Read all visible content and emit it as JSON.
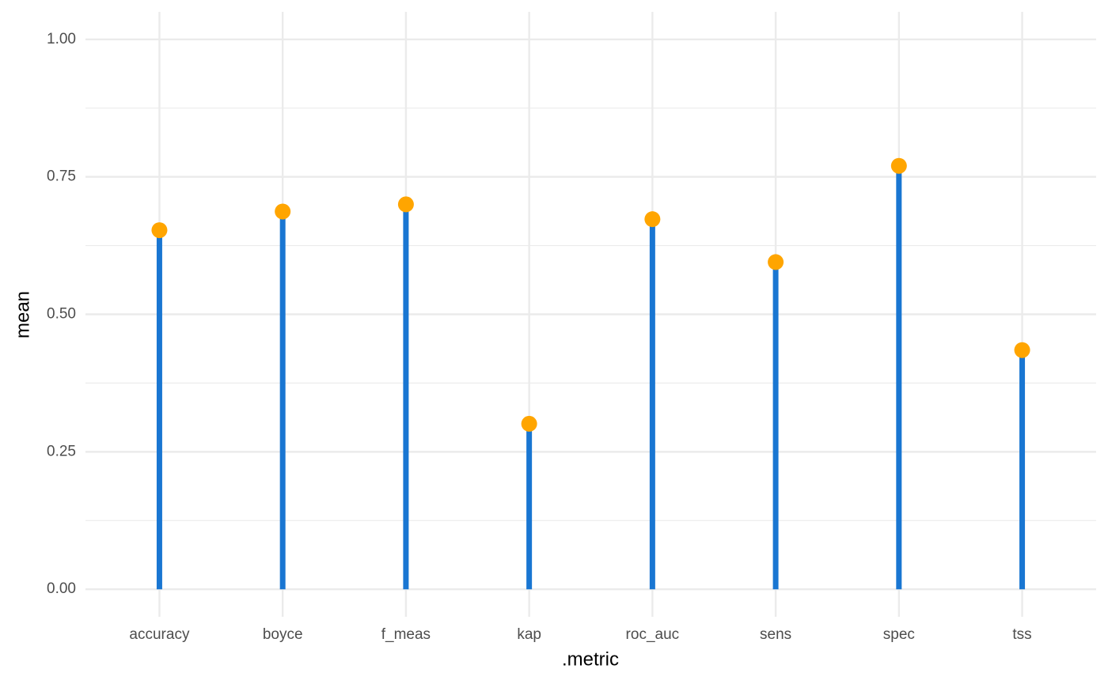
{
  "chart_data": {
    "type": "lollipop",
    "x_label": ".metric",
    "y_label": "mean",
    "categories": [
      "accuracy",
      "boyce",
      "f_meas",
      "kap",
      "roc_auc",
      "sens",
      "spec",
      "tss"
    ],
    "values": [
      0.653,
      0.687,
      0.7,
      0.301,
      0.673,
      0.595,
      0.77,
      0.435
    ],
    "stem_color": "#1976d2",
    "point_color": "#ffa500",
    "ylim": [
      -0.05,
      1.05
    ],
    "yticks": [
      {
        "value": 0,
        "label": "0.00"
      },
      {
        "value": 0.25,
        "label": "0.25"
      },
      {
        "value": 0.5,
        "label": "0.50"
      },
      {
        "value": 0.75,
        "label": "0.75"
      },
      {
        "value": 1,
        "label": "1.00"
      }
    ],
    "minor_yticks": [
      0.125,
      0.375,
      0.625,
      0.875
    ],
    "grid": true
  }
}
